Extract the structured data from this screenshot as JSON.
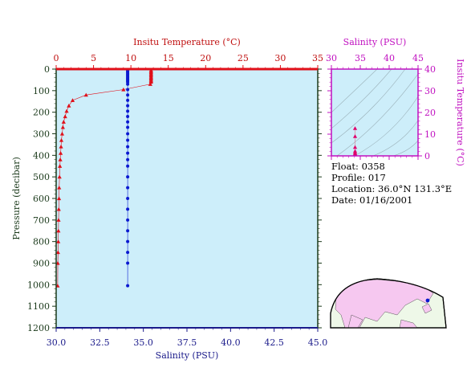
{
  "chart_data": [
    {
      "type": "scatter",
      "x_top_label": "Insitu Temperature (°C)",
      "x_bottom_label": "Salinity (PSU)",
      "ylabel": "Pressure (decibar)",
      "temp_range": [
        0,
        35
      ],
      "temp_ticks": [
        "0",
        "5",
        "10",
        "15",
        "20",
        "25",
        "30",
        "35"
      ],
      "sal_range": [
        30.0,
        45.0
      ],
      "sal_ticks": [
        "30.0",
        "32.5",
        "35.0",
        "37.5",
        "40.0",
        "42.5",
        "45.0"
      ],
      "pressure_range": [
        0,
        1200
      ],
      "pressure_ticks": [
        "0",
        "100",
        "200",
        "300",
        "400",
        "500",
        "600",
        "700",
        "800",
        "900",
        "1000",
        "1100",
        "1200"
      ],
      "colors": {
        "temperature": "#e0101a",
        "salinity": "#0a18d0",
        "background": "#cdeefa",
        "axis": "#1b3a1b",
        "title": "#c01010",
        "sal_title": "#1a1a8a"
      },
      "series": [
        {
          "kind": "temperature",
          "points": [
            {
              "x": 12.7,
              "y": 5
            },
            {
              "x": 12.7,
              "y": 10
            },
            {
              "x": 12.7,
              "y": 15
            },
            {
              "x": 12.7,
              "y": 20
            },
            {
              "x": 12.7,
              "y": 25
            },
            {
              "x": 12.7,
              "y": 30
            },
            {
              "x": 12.7,
              "y": 35
            },
            {
              "x": 12.7,
              "y": 40
            },
            {
              "x": 12.7,
              "y": 45
            },
            {
              "x": 12.7,
              "y": 50
            },
            {
              "x": 12.7,
              "y": 55
            },
            {
              "x": 12.7,
              "y": 60
            },
            {
              "x": 12.6,
              "y": 70
            },
            {
              "x": 9.0,
              "y": 95
            },
            {
              "x": 4.0,
              "y": 120
            },
            {
              "x": 2.2,
              "y": 145
            },
            {
              "x": 1.7,
              "y": 170
            },
            {
              "x": 1.4,
              "y": 195
            },
            {
              "x": 1.2,
              "y": 220
            },
            {
              "x": 1.0,
              "y": 245
            },
            {
              "x": 0.9,
              "y": 270
            },
            {
              "x": 0.8,
              "y": 300
            },
            {
              "x": 0.7,
              "y": 330
            },
            {
              "x": 0.65,
              "y": 360
            },
            {
              "x": 0.6,
              "y": 390
            },
            {
              "x": 0.55,
              "y": 420
            },
            {
              "x": 0.5,
              "y": 450
            },
            {
              "x": 0.45,
              "y": 500
            },
            {
              "x": 0.4,
              "y": 550
            },
            {
              "x": 0.38,
              "y": 600
            },
            {
              "x": 0.35,
              "y": 650
            },
            {
              "x": 0.32,
              "y": 700
            },
            {
              "x": 0.3,
              "y": 750
            },
            {
              "x": 0.28,
              "y": 800
            },
            {
              "x": 0.25,
              "y": 850
            },
            {
              "x": 0.22,
              "y": 900
            },
            {
              "x": 0.2,
              "y": 1005
            }
          ]
        },
        {
          "kind": "salinity",
          "points": [
            {
              "x": 34.1,
              "y": 5
            },
            {
              "x": 34.1,
              "y": 10
            },
            {
              "x": 34.1,
              "y": 15
            },
            {
              "x": 34.1,
              "y": 20
            },
            {
              "x": 34.1,
              "y": 25
            },
            {
              "x": 34.1,
              "y": 30
            },
            {
              "x": 34.1,
              "y": 35
            },
            {
              "x": 34.1,
              "y": 40
            },
            {
              "x": 34.1,
              "y": 45
            },
            {
              "x": 34.1,
              "y": 50
            },
            {
              "x": 34.1,
              "y": 55
            },
            {
              "x": 34.1,
              "y": 60
            },
            {
              "x": 34.1,
              "y": 70
            },
            {
              "x": 34.1,
              "y": 95
            },
            {
              "x": 34.1,
              "y": 120
            },
            {
              "x": 34.1,
              "y": 145
            },
            {
              "x": 34.1,
              "y": 170
            },
            {
              "x": 34.1,
              "y": 195
            },
            {
              "x": 34.1,
              "y": 220
            },
            {
              "x": 34.1,
              "y": 245
            },
            {
              "x": 34.1,
              "y": 270
            },
            {
              "x": 34.1,
              "y": 300
            },
            {
              "x": 34.1,
              "y": 330
            },
            {
              "x": 34.1,
              "y": 360
            },
            {
              "x": 34.1,
              "y": 390
            },
            {
              "x": 34.1,
              "y": 420
            },
            {
              "x": 34.1,
              "y": 450
            },
            {
              "x": 34.1,
              "y": 500
            },
            {
              "x": 34.1,
              "y": 550
            },
            {
              "x": 34.1,
              "y": 600
            },
            {
              "x": 34.1,
              "y": 650
            },
            {
              "x": 34.1,
              "y": 700
            },
            {
              "x": 34.1,
              "y": 750
            },
            {
              "x": 34.1,
              "y": 800
            },
            {
              "x": 34.1,
              "y": 850
            },
            {
              "x": 34.1,
              "y": 900
            },
            {
              "x": 34.1,
              "y": 1005
            }
          ]
        }
      ]
    },
    {
      "type": "scatter",
      "xlabel": "Salinity (PSU)",
      "ylabel": "Insitu Temperature (°C)",
      "xlim": [
        30,
        45
      ],
      "ylim": [
        0,
        40
      ],
      "x_ticks": [
        "30",
        "35",
        "40",
        "45"
      ],
      "y_ticks": [
        "0",
        "10",
        "20",
        "30",
        "40"
      ],
      "colors": {
        "axis": "#c010c0",
        "points": "#e0006a",
        "background": "#cdeefa"
      },
      "points": [
        {
          "x": 34.1,
          "y": 12.7
        },
        {
          "x": 34.1,
          "y": 9.0
        },
        {
          "x": 34.1,
          "y": 4.0
        },
        {
          "x": 34.1,
          "y": 2.2
        },
        {
          "x": 34.1,
          "y": 1.5
        },
        {
          "x": 34.1,
          "y": 1.0
        },
        {
          "x": 34.1,
          "y": 0.7
        },
        {
          "x": 34.1,
          "y": 0.4
        },
        {
          "x": 34.1,
          "y": 0.2
        }
      ]
    }
  ],
  "float_info": {
    "float": "Float:  0358",
    "profile": "Profile:  017",
    "location": "Location:  36.0°N  131.3°E",
    "date": "Date:  01/16/2001"
  },
  "map": {
    "marker": "blue-dot"
  }
}
